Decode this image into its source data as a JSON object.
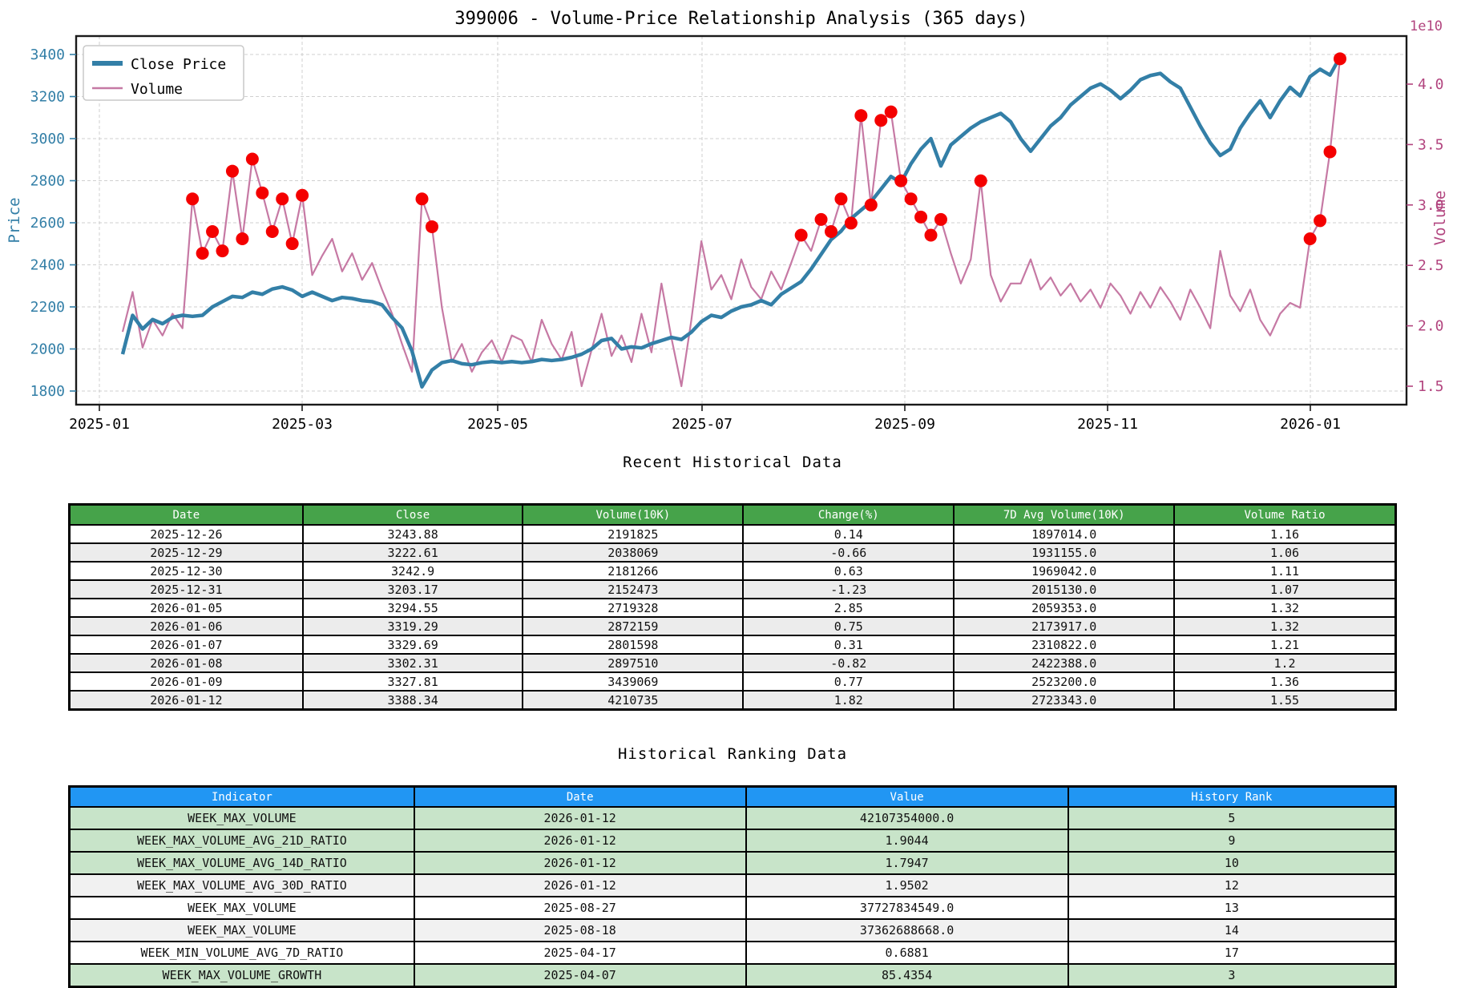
{
  "chart": {
    "title": "399006 - Volume-Price Relationship Analysis (365 days)",
    "legend": [
      {
        "label": "Close Price"
      },
      {
        "label": "Volume"
      }
    ],
    "left_axis": {
      "label": "Price",
      "ticks": [
        1800,
        2000,
        2200,
        2400,
        2600,
        2800,
        3000,
        3200,
        3400
      ]
    },
    "right_axis": {
      "label": "Volume",
      "offset_text": "1e10",
      "ticks": [
        1.5,
        2.0,
        2.5,
        3.0,
        3.5,
        4.0
      ]
    },
    "x_axis": {
      "ticks": [
        "2025-01",
        "2025-03",
        "2025-05",
        "2025-07",
        "2025-09",
        "2025-11",
        "2026-01"
      ]
    },
    "colors": {
      "close_line": "#337fa7",
      "volume_line": "#c679a4",
      "volume_axis": "#b2457f",
      "price_axis": "#337fa7",
      "anomaly_dot": "#f40000",
      "grid": "#cfcfcf",
      "spine": "#1a1a1a"
    }
  },
  "chart_data": {
    "type": "line",
    "title": "399006 - Volume-Price Relationship Analysis (365 days)",
    "x_start": "2025-01-08",
    "x_step_days": 3,
    "x_tick_labels": [
      "2025-01",
      "2025-03",
      "2025-05",
      "2025-07",
      "2025-09",
      "2025-11",
      "2026-01"
    ],
    "ylabel_left": "Price",
    "ylabel_right": "Volume",
    "right_axis_offset": "1e10",
    "ylim_left": [
      1750,
      3470
    ],
    "ylim_right": [
      1.42,
      4.4
    ],
    "y_ticks_left": [
      1800,
      2000,
      2200,
      2400,
      2600,
      2800,
      3000,
      3200,
      3400
    ],
    "y_ticks_right": [
      1.5,
      2.0,
      2.5,
      3.0,
      3.5,
      4.0
    ],
    "legend": [
      "Close Price",
      "Volume"
    ],
    "grid": true,
    "series": [
      {
        "name": "Close Price",
        "axis": "left",
        "values": [
          1975,
          2160,
          2095,
          2140,
          2120,
          2150,
          2160,
          2155,
          2160,
          2200,
          2225,
          2250,
          2245,
          2270,
          2260,
          2285,
          2295,
          2280,
          2250,
          2270,
          2250,
          2230,
          2245,
          2240,
          2230,
          2225,
          2210,
          2150,
          2100,
          1990,
          1820,
          1900,
          1935,
          1945,
          1930,
          1925,
          1935,
          1940,
          1935,
          1940,
          1935,
          1940,
          1950,
          1945,
          1950,
          1960,
          1975,
          2000,
          2040,
          2050,
          2000,
          2010,
          2005,
          2025,
          2040,
          2055,
          2045,
          2080,
          2130,
          2160,
          2150,
          2180,
          2200,
          2210,
          2230,
          2210,
          2260,
          2290,
          2320,
          2380,
          2450,
          2520,
          2560,
          2620,
          2660,
          2700,
          2760,
          2820,
          2790,
          2880,
          2950,
          3000,
          2870,
          2970,
          3010,
          3050,
          3080,
          3100,
          3120,
          3080,
          3000,
          2940,
          3000,
          3060,
          3100,
          3160,
          3200,
          3240,
          3260,
          3230,
          3190,
          3230,
          3280,
          3300,
          3310,
          3270,
          3240,
          3150,
          3060,
          2980,
          2920,
          2950,
          3050,
          3120,
          3180,
          3100,
          3180,
          3244,
          3203,
          3295,
          3330,
          3302,
          3388
        ]
      },
      {
        "name": "Volume",
        "axis": "right",
        "unit": "1e10",
        "values": [
          1.95,
          2.28,
          1.82,
          2.05,
          1.92,
          2.1,
          1.98,
          3.05,
          2.6,
          2.78,
          2.62,
          3.28,
          2.72,
          3.38,
          3.1,
          2.78,
          3.05,
          2.68,
          3.08,
          2.42,
          2.58,
          2.72,
          2.45,
          2.6,
          2.38,
          2.52,
          2.3,
          2.1,
          1.85,
          1.62,
          3.05,
          2.82,
          2.15,
          1.7,
          1.85,
          1.62,
          1.78,
          1.88,
          1.7,
          1.92,
          1.88,
          1.7,
          2.05,
          1.85,
          1.72,
          1.95,
          1.5,
          1.8,
          2.1,
          1.75,
          1.92,
          1.7,
          2.1,
          1.78,
          2.35,
          1.9,
          1.5,
          2.05,
          2.7,
          2.3,
          2.42,
          2.22,
          2.55,
          2.32,
          2.22,
          2.45,
          2.3,
          2.52,
          2.75,
          2.62,
          2.88,
          2.78,
          3.05,
          2.85,
          3.74,
          3.0,
          3.7,
          3.77,
          3.2,
          3.05,
          2.9,
          2.75,
          2.88,
          2.6,
          2.35,
          2.55,
          3.2,
          2.42,
          2.2,
          2.35,
          2.35,
          2.55,
          2.3,
          2.4,
          2.25,
          2.35,
          2.2,
          2.3,
          2.15,
          2.35,
          2.25,
          2.1,
          2.28,
          2.15,
          2.32,
          2.2,
          2.05,
          2.3,
          2.15,
          1.98,
          2.62,
          2.25,
          2.12,
          2.3,
          2.05,
          1.92,
          2.1,
          2.19,
          2.15,
          2.72,
          2.87,
          3.44,
          4.21
        ]
      }
    ],
    "anomaly_point_indices": [
      7,
      8,
      9,
      10,
      11,
      12,
      13,
      14,
      15,
      16,
      17,
      18,
      30,
      31,
      68,
      70,
      71,
      72,
      73,
      74,
      75,
      76,
      77,
      78,
      79,
      80,
      81,
      82,
      86,
      119,
      120,
      121,
      122
    ]
  },
  "recent_table": {
    "title": "Recent Historical Data",
    "header_bg": "#46a34a",
    "stripe_colors": [
      "#ffffff",
      "#ececec"
    ],
    "columns": [
      "Date",
      "Close",
      "Volume(10K)",
      "Change(%)",
      "7D Avg Volume(10K)",
      "Volume Ratio"
    ],
    "rows": [
      [
        "2025-12-26",
        "3243.88",
        "2191825",
        "0.14",
        "1897014.0",
        "1.16"
      ],
      [
        "2025-12-29",
        "3222.61",
        "2038069",
        "-0.66",
        "1931155.0",
        "1.06"
      ],
      [
        "2025-12-30",
        "3242.9",
        "2181266",
        "0.63",
        "1969042.0",
        "1.11"
      ],
      [
        "2025-12-31",
        "3203.17",
        "2152473",
        "-1.23",
        "2015130.0",
        "1.07"
      ],
      [
        "2026-01-05",
        "3294.55",
        "2719328",
        "2.85",
        "2059353.0",
        "1.32"
      ],
      [
        "2026-01-06",
        "3319.29",
        "2872159",
        "0.75",
        "2173917.0",
        "1.32"
      ],
      [
        "2026-01-07",
        "3329.69",
        "2801598",
        "0.31",
        "2310822.0",
        "1.21"
      ],
      [
        "2026-01-08",
        "3302.31",
        "2897510",
        "-0.82",
        "2422388.0",
        "1.2"
      ],
      [
        "2026-01-09",
        "3327.81",
        "3439069",
        "0.77",
        "2523200.0",
        "1.36"
      ],
      [
        "2026-01-12",
        "3388.34",
        "4210735",
        "1.82",
        "2723343.0",
        "1.55"
      ]
    ]
  },
  "ranking_table": {
    "title": "Historical Ranking Data",
    "header_bg": "#2196f3",
    "highlight_colors": {
      "green": "#c8e4c9",
      "gray": "#f1f1f1",
      "white": "#ffffff"
    },
    "columns": [
      "Indicator",
      "Date",
      "Value",
      "History Rank"
    ],
    "rows": [
      {
        "cells": [
          "WEEK_MAX_VOLUME",
          "2026-01-12",
          "42107354000.0",
          "5"
        ],
        "highlight": "green"
      },
      {
        "cells": [
          "WEEK_MAX_VOLUME_AVG_21D_RATIO",
          "2026-01-12",
          "1.9044",
          "9"
        ],
        "highlight": "green"
      },
      {
        "cells": [
          "WEEK_MAX_VOLUME_AVG_14D_RATIO",
          "2026-01-12",
          "1.7947",
          "10"
        ],
        "highlight": "green"
      },
      {
        "cells": [
          "WEEK_MAX_VOLUME_AVG_30D_RATIO",
          "2026-01-12",
          "1.9502",
          "12"
        ],
        "highlight": "gray"
      },
      {
        "cells": [
          "WEEK_MAX_VOLUME",
          "2025-08-27",
          "37727834549.0",
          "13"
        ],
        "highlight": "white"
      },
      {
        "cells": [
          "WEEK_MAX_VOLUME",
          "2025-08-18",
          "37362688668.0",
          "14"
        ],
        "highlight": "gray"
      },
      {
        "cells": [
          "WEEK_MIN_VOLUME_AVG_7D_RATIO",
          "2025-04-17",
          "0.6881",
          "17"
        ],
        "highlight": "white"
      },
      {
        "cells": [
          "WEEK_MAX_VOLUME_GROWTH",
          "2025-04-07",
          "85.4354",
          "3"
        ],
        "highlight": "green"
      }
    ]
  }
}
